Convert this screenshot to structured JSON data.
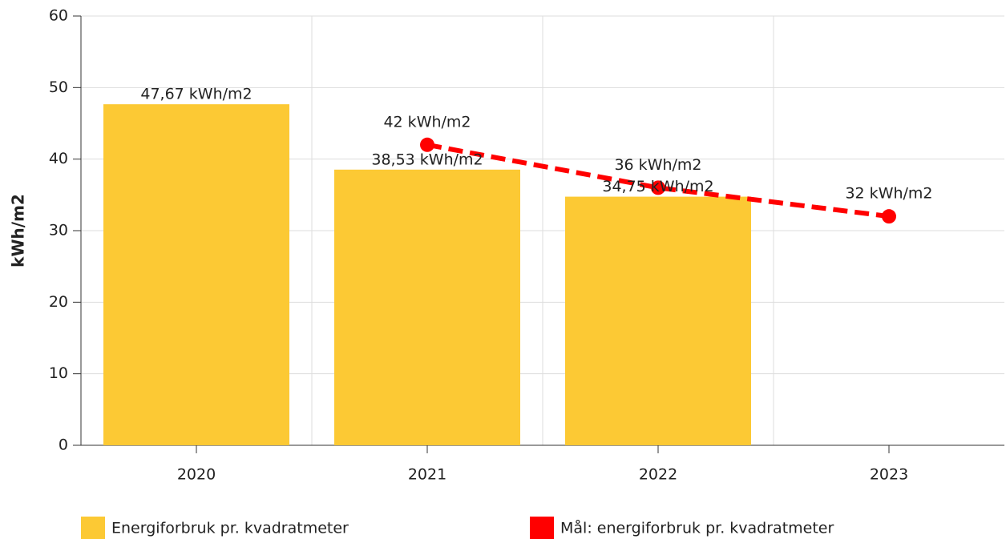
{
  "chart_data": {
    "type": "bar",
    "ylabel": "kWh/m2",
    "categories": [
      "2020",
      "2021",
      "2022",
      "2023"
    ],
    "series": [
      {
        "name": "Energiforbruk pr. kvadratmeter",
        "type": "bar",
        "color": "#fcc934",
        "values": [
          47.67,
          38.53,
          34.75,
          null
        ],
        "value_labels": [
          "47,67 kWh/m2",
          "38,53 kWh/m2",
          "34,75 kWh/m2",
          null
        ]
      },
      {
        "name": "Mål: energiforbruk pr. kvadratmeter",
        "type": "line",
        "color": "#ff0000",
        "values": [
          null,
          42,
          36,
          32
        ],
        "value_labels": [
          null,
          "42 kWh/m2",
          "36 kWh/m2",
          "32 kWh/m2"
        ]
      }
    ],
    "ylim": [
      0,
      60
    ],
    "yticks": [
      0,
      10,
      20,
      30,
      40,
      50,
      60
    ],
    "grid": true
  }
}
